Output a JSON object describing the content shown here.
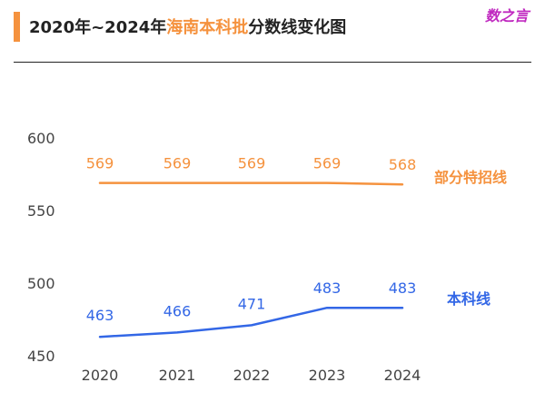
{
  "header": {
    "title_pre": "2020年~2024年",
    "title_highlight": "海南本科批",
    "title_post": "分数线变化图",
    "brand": "数之言"
  },
  "colors": {
    "accent": "#f5923e",
    "blue": "#3367e6"
  },
  "chart_data": {
    "type": "line",
    "x": [
      "2020",
      "2021",
      "2022",
      "2023",
      "2024"
    ],
    "ylim": [
      450,
      600
    ],
    "yticks": [
      450,
      500,
      550,
      600
    ],
    "grid": false,
    "series": [
      {
        "name": "部分特招线",
        "values": [
          569,
          569,
          569,
          569,
          568
        ],
        "color": "#f5923e"
      },
      {
        "name": "本科线",
        "values": [
          463,
          466,
          471,
          483,
          483
        ],
        "color": "#3367e6"
      }
    ]
  }
}
